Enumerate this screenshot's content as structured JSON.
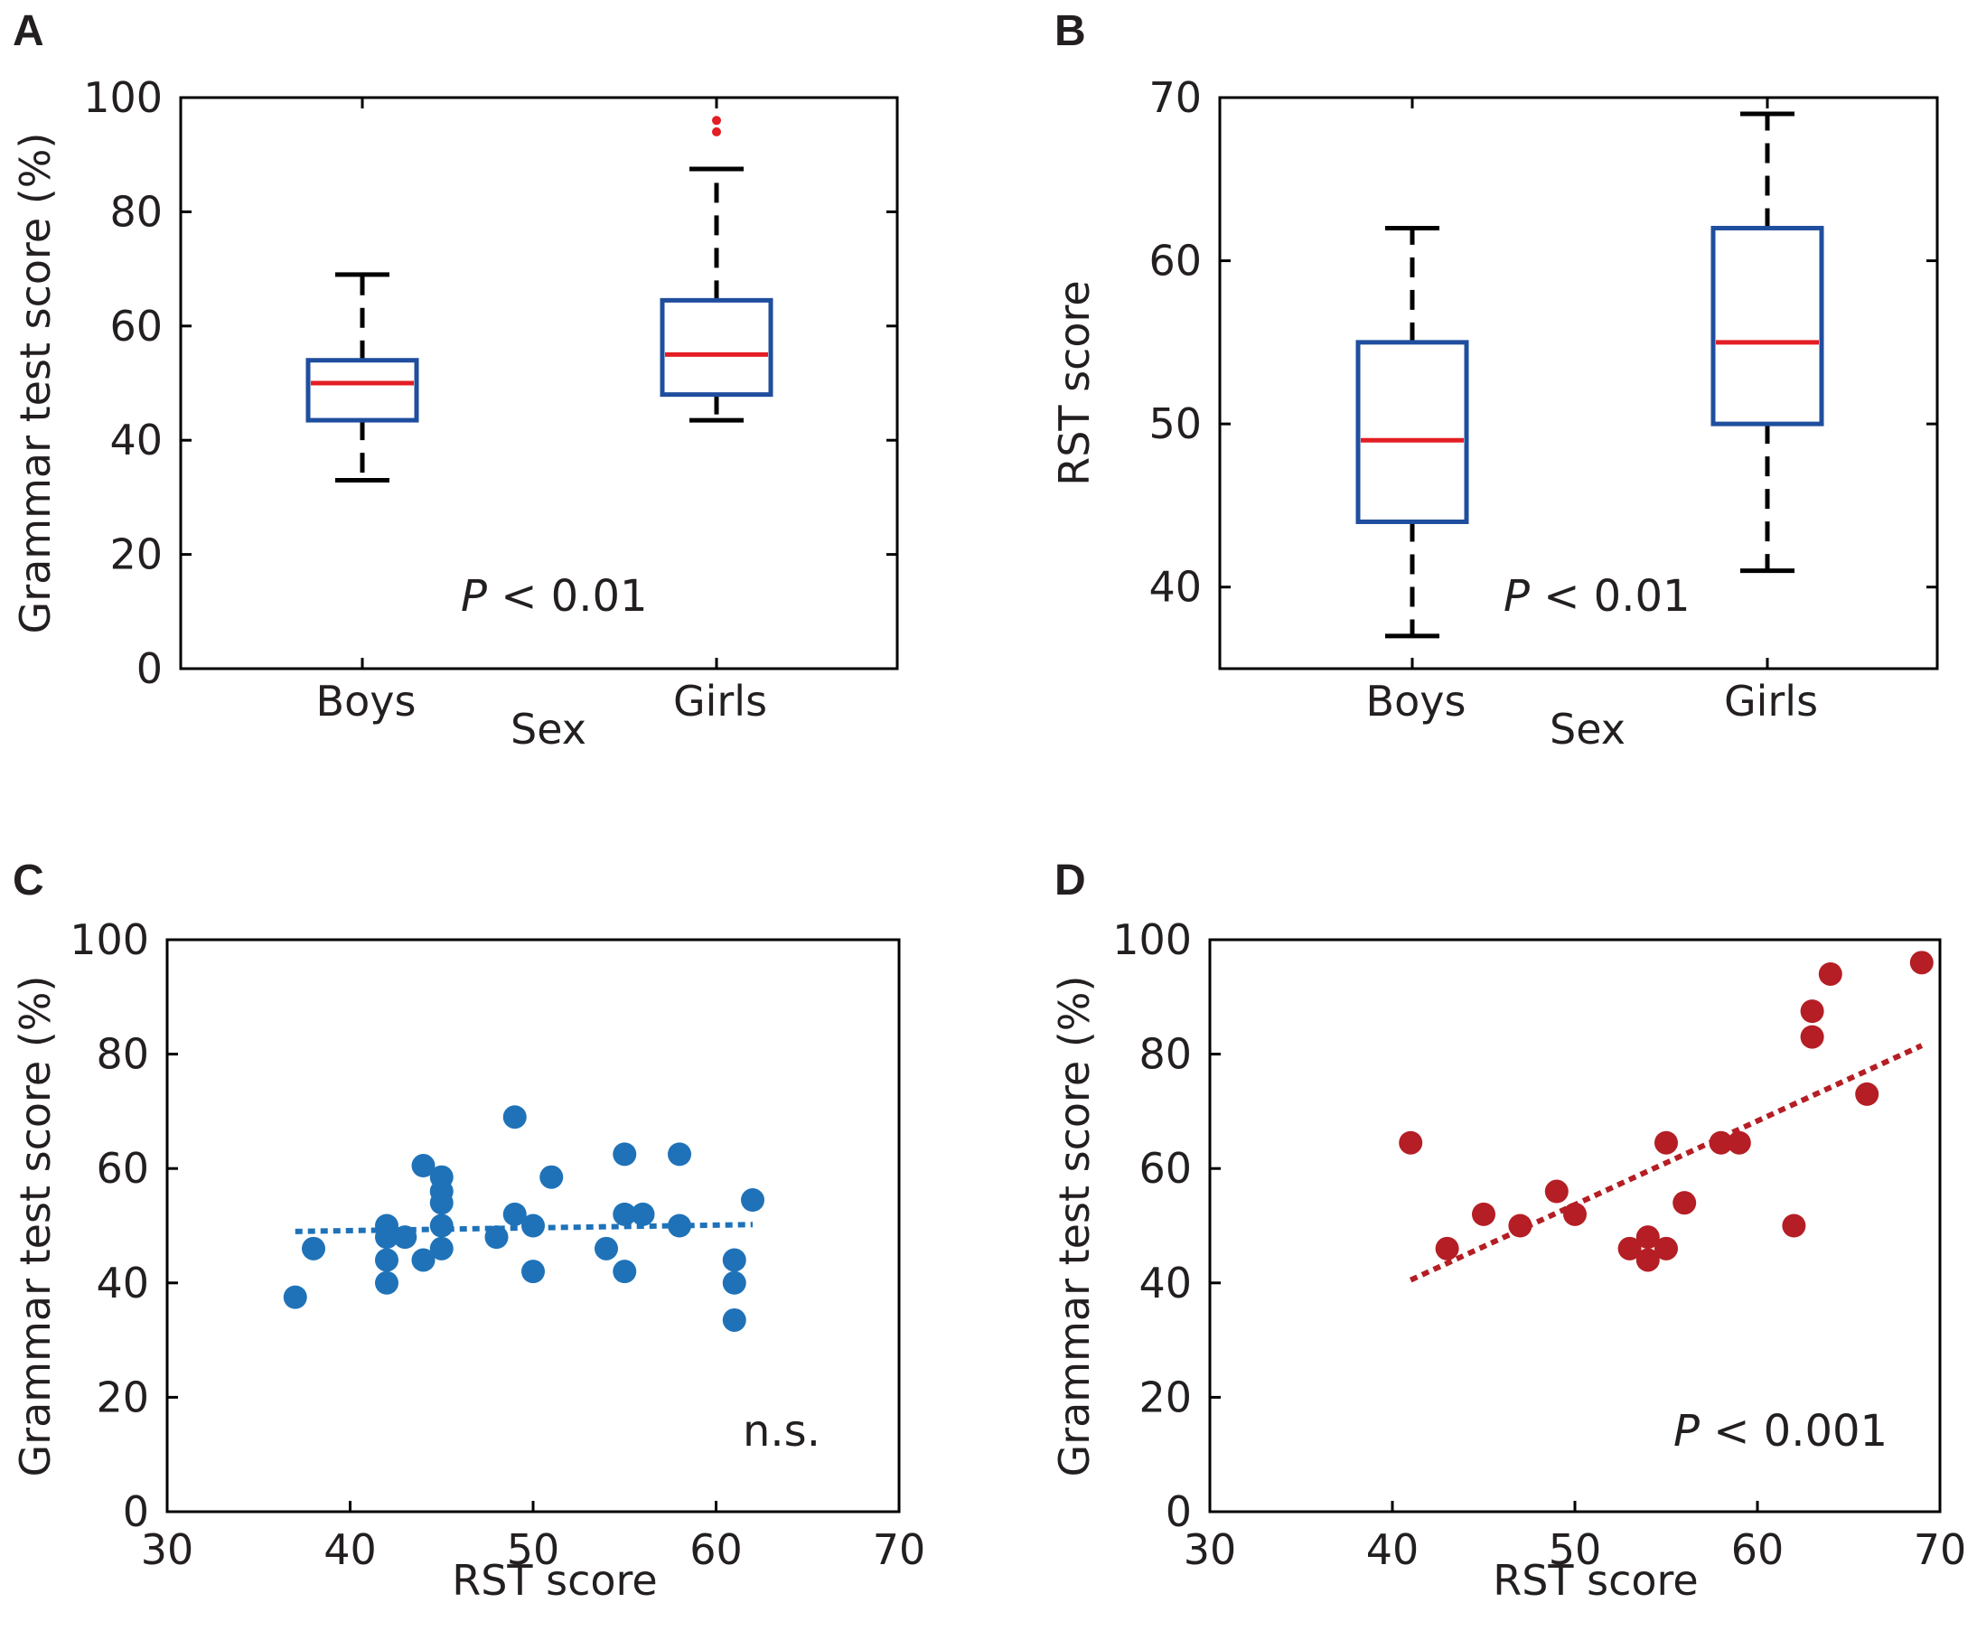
{
  "chart_data": [
    {
      "panel": "A",
      "type": "box",
      "ylabel": "Grammar test score (%)",
      "xlabel": "Sex",
      "ylim": [
        0,
        100
      ],
      "yticks": [
        "0",
        "20",
        "40",
        "60",
        "80",
        "100"
      ],
      "annotation_italic": "P",
      "annotation_rest": "< 0.01",
      "colors": {
        "box": "#1f4e9e",
        "median": "#e31e24",
        "whisker": "#000000",
        "outlier": "#e31e24"
      },
      "groups": [
        {
          "name": "Boys",
          "whisker_low": 33,
          "q1": 43.5,
          "median": 50,
          "q3": 54,
          "whisker_high": 69,
          "outliers": []
        },
        {
          "name": "Girls",
          "whisker_low": 43.5,
          "q1": 48,
          "median": 55,
          "q3": 64.5,
          "whisker_high": 87.5,
          "outliers": [
            94,
            96
          ]
        }
      ]
    },
    {
      "panel": "B",
      "type": "box",
      "ylabel": "RST score",
      "xlabel": "Sex",
      "ylim": [
        35,
        70
      ],
      "yticks": [
        "40",
        "50",
        "60",
        "70"
      ],
      "annotation_italic": "P",
      "annotation_rest": "< 0.01",
      "colors": {
        "box": "#1f4e9e",
        "median": "#e31e24",
        "whisker": "#000000",
        "outlier": "#e31e24"
      },
      "groups": [
        {
          "name": "Boys",
          "whisker_low": 37,
          "q1": 44,
          "median": 49,
          "q3": 55,
          "whisker_high": 62,
          "outliers": []
        },
        {
          "name": "Girls",
          "whisker_low": 41,
          "q1": 50,
          "median": 55,
          "q3": 62,
          "whisker_high": 69,
          "outliers": []
        }
      ]
    },
    {
      "panel": "C",
      "type": "scatter",
      "xlabel": "RST score",
      "ylabel": "Grammar test score (%)",
      "xlim": [
        30,
        70
      ],
      "ylim": [
        0,
        100
      ],
      "xticks": [
        "30",
        "40",
        "50",
        "60",
        "70"
      ],
      "yticks": [
        "0",
        "20",
        "40",
        "60",
        "80",
        "100"
      ],
      "annotation_italic": "",
      "annotation_rest": "n.s.",
      "color": "#1f72b8",
      "trendline": [
        [
          37,
          49
        ],
        [
          62,
          50.2
        ]
      ],
      "points": [
        [
          37,
          37.5
        ],
        [
          38,
          46
        ],
        [
          42,
          50
        ],
        [
          42,
          48
        ],
        [
          42,
          44
        ],
        [
          42,
          40
        ],
        [
          43,
          48
        ],
        [
          44,
          60.5
        ],
        [
          44,
          44
        ],
        [
          45,
          58.5
        ],
        [
          45,
          56
        ],
        [
          45,
          54
        ],
        [
          45,
          50
        ],
        [
          45,
          46
        ],
        [
          48,
          48
        ],
        [
          49,
          69
        ],
        [
          49,
          52
        ],
        [
          50,
          50
        ],
        [
          50,
          42
        ],
        [
          51,
          58.5
        ],
        [
          54,
          46
        ],
        [
          55,
          62.5
        ],
        [
          55,
          52
        ],
        [
          55,
          42
        ],
        [
          56,
          52
        ],
        [
          58,
          62.5
        ],
        [
          58,
          50
        ],
        [
          61,
          44
        ],
        [
          61,
          40
        ],
        [
          61,
          33.5
        ],
        [
          62,
          54.5
        ]
      ]
    },
    {
      "panel": "D",
      "type": "scatter",
      "xlabel": "RST score",
      "ylabel": "Grammar test score (%)",
      "xlim": [
        30,
        70
      ],
      "ylim": [
        0,
        100
      ],
      "xticks": [
        "30",
        "40",
        "50",
        "60",
        "70"
      ],
      "yticks": [
        "0",
        "20",
        "40",
        "60",
        "80",
        "100"
      ],
      "annotation_italic": "P",
      "annotation_rest": "< 0.001",
      "color": "#b41e24",
      "trendline": [
        [
          41,
          40.5
        ],
        [
          69,
          81.5
        ]
      ],
      "points": [
        [
          41,
          64.5
        ],
        [
          43,
          46
        ],
        [
          45,
          52
        ],
        [
          47,
          50
        ],
        [
          49,
          56
        ],
        [
          50,
          52
        ],
        [
          53,
          46
        ],
        [
          54,
          48
        ],
        [
          54,
          44
        ],
        [
          55,
          46
        ],
        [
          55,
          64.5
        ],
        [
          56,
          54
        ],
        [
          58,
          64.5
        ],
        [
          59,
          64.5
        ],
        [
          62,
          50
        ],
        [
          63,
          87.5
        ],
        [
          63,
          83
        ],
        [
          64,
          94
        ],
        [
          66,
          73
        ],
        [
          69,
          96
        ]
      ]
    }
  ]
}
